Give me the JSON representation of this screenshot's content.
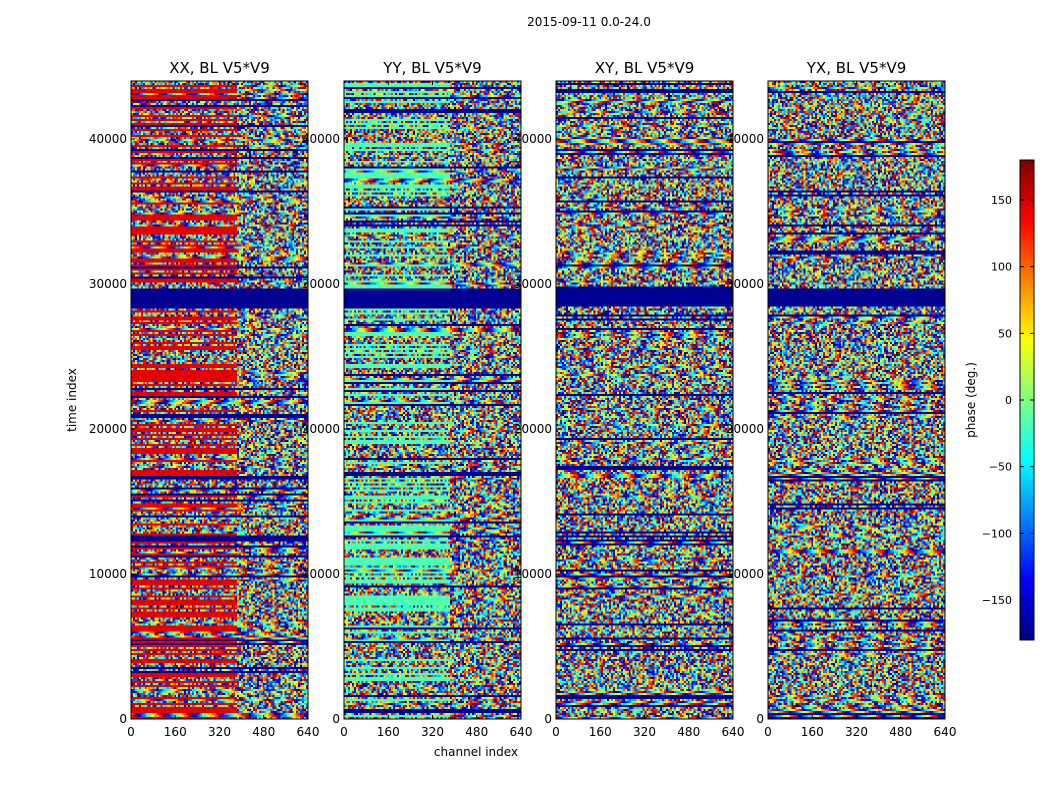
{
  "chart_data": {
    "type": "heatmap",
    "suptitle": "2015-09-11 0.0-24.0",
    "panels": [
      {
        "title": "XX, BL V5*V9",
        "variant": "xx"
      },
      {
        "title": "YY, BL V5*V9",
        "variant": "yy"
      },
      {
        "title": "XY, BL V5*V9",
        "variant": "xy"
      },
      {
        "title": "YX, BL V5*V9",
        "variant": "yx"
      }
    ],
    "xlabel": "channel index",
    "ylabel": "time index",
    "xlim": [
      0,
      640
    ],
    "ylim": [
      0,
      44000
    ],
    "xticks": [
      0,
      160,
      320,
      480,
      640
    ],
    "xtick_labels": [
      "0",
      "160",
      "320",
      "480",
      "640"
    ],
    "yticks": [
      0,
      10000,
      20000,
      30000,
      40000
    ],
    "ytick_labels": [
      "0",
      "10000",
      "20000",
      "30000",
      "40000"
    ],
    "colorbar": {
      "label": "phase (deg.)",
      "range": [
        -180,
        180
      ],
      "ticks": [
        150,
        100,
        50,
        0,
        -50,
        -100,
        -150
      ],
      "tick_labels": [
        "150",
        "100",
        "50",
        "0",
        "−50",
        "−100",
        "−150"
      ],
      "colormap": "jet"
    },
    "flagged_band": {
      "y_start": 28500,
      "y_end": 29700,
      "value": -180
    }
  }
}
